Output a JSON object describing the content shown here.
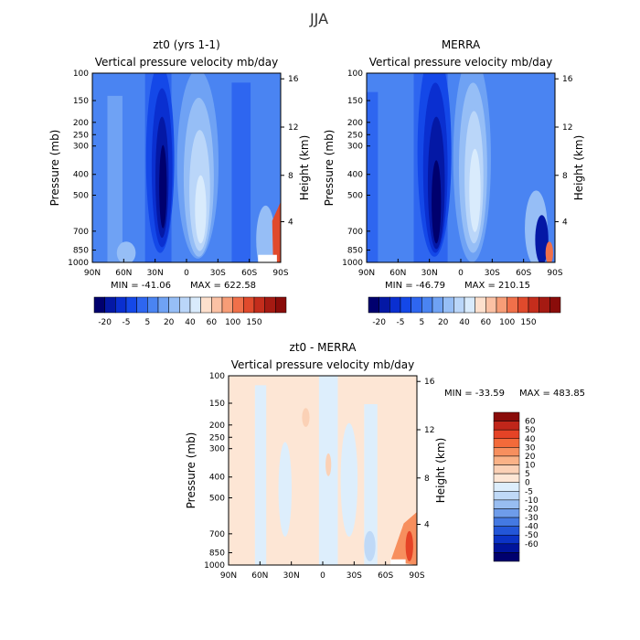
{
  "figure": {
    "title": "JJA",
    "pressure_axis_label": "Pressure (mb)",
    "height_axis_label": "Height (km)",
    "variable_label": "Vertical pressure velocity",
    "units": "mb/day"
  },
  "palette": {
    "top_colors": [
      "#00006e",
      "#0418a5",
      "#0a2fd0",
      "#1448e8",
      "#2e66f0",
      "#4a84f2",
      "#6fa2f4",
      "#96bef6",
      "#bad6f9",
      "#d9ebfc",
      "#fde0cd",
      "#fbc1a4",
      "#f79d77",
      "#f0704a",
      "#e04a2c",
      "#c42d1c",
      "#a51a12",
      "#8a0c0a"
    ],
    "diff_colors": [
      "#8a0c0a",
      "#c0261a",
      "#e54326",
      "#f36a3a",
      "#f78f5e",
      "#fab287",
      "#fbd1b6",
      "#fde6d5",
      "#ddeefc",
      "#bfd9f7",
      "#98bdf1",
      "#6e9cea",
      "#4479e2",
      "#2356d8",
      "#0b33c6",
      "#00149c",
      "#00006e"
    ]
  },
  "chart_data": [
    {
      "type": "heatmap",
      "title": "zt0 (yrs 1-1)",
      "subtitle": "Vertical pressure velocity",
      "units": "mb/day",
      "x_ticks": [
        "90N",
        "60N",
        "30N",
        "0",
        "30S",
        "60S",
        "90S"
      ],
      "y_ticks": [
        "100",
        "150",
        "200",
        "250",
        "300",
        "400",
        "500",
        "700",
        "850",
        "1000"
      ],
      "height_ticks": [
        "16",
        "12",
        "8",
        "4"
      ],
      "min_text": "MIN = -41.06",
      "max_text": "MAX = 622.58",
      "colorbar_labels": [
        "-20",
        "-5",
        "5",
        "20",
        "40",
        "60",
        "100",
        "150"
      ],
      "xlabel": "",
      "ylabel": "Pressure (mb)",
      "y2label": "Height (km)"
    },
    {
      "type": "heatmap",
      "title": "MERRA",
      "subtitle": "Vertical pressure velocity",
      "units": "mb/day",
      "x_ticks": [
        "90N",
        "60N",
        "30N",
        "0",
        "30S",
        "60S",
        "90S"
      ],
      "y_ticks": [
        "100",
        "150",
        "200",
        "250",
        "300",
        "400",
        "500",
        "700",
        "850",
        "1000"
      ],
      "height_ticks": [
        "16",
        "12",
        "8",
        "4"
      ],
      "min_text": "MIN = -46.79",
      "max_text": "MAX = 210.15",
      "colorbar_labels": [
        "-20",
        "-5",
        "5",
        "20",
        "40",
        "60",
        "100",
        "150"
      ],
      "xlabel": "",
      "ylabel": "Pressure (mb)",
      "y2label": "Height (km)"
    },
    {
      "type": "heatmap",
      "title": "zt0 - MERRA",
      "subtitle": "Vertical pressure velocity",
      "units": "mb/day",
      "x_ticks": [
        "90N",
        "60N",
        "30N",
        "0",
        "30S",
        "60S",
        "90S"
      ],
      "y_ticks": [
        "100",
        "150",
        "200",
        "250",
        "300",
        "400",
        "500",
        "700",
        "850",
        "1000"
      ],
      "height_ticks": [
        "16",
        "12",
        "8",
        "4"
      ],
      "min_text": "MIN = -33.59",
      "max_text": "MAX = 483.85",
      "colorbar_labels": [
        "60",
        "50",
        "40",
        "30",
        "20",
        "10",
        "5",
        "0",
        "-5",
        "-10",
        "-20",
        "-30",
        "-40",
        "-50",
        "-60"
      ],
      "xlabel": "",
      "ylabel": "Pressure (mb)",
      "y2label": "Height (km)"
    }
  ]
}
